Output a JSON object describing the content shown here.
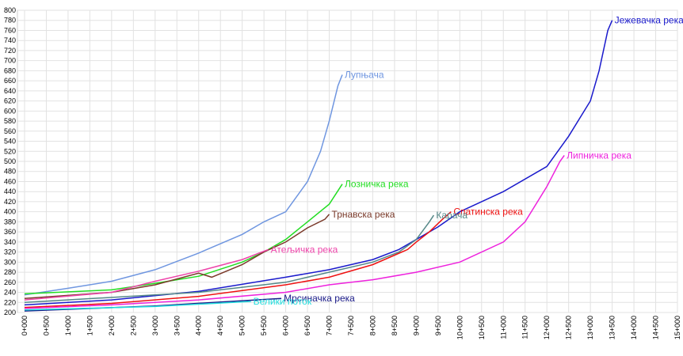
{
  "chart_data": {
    "type": "line",
    "xlim": [
      0,
      15000
    ],
    "xticks": [
      {
        "value": 0,
        "label": "0+000"
      },
      {
        "value": 500,
        "label": "0+500"
      },
      {
        "value": 1000,
        "label": "1+000"
      },
      {
        "value": 1500,
        "label": "1+500"
      },
      {
        "value": 2000,
        "label": "2+000"
      },
      {
        "value": 2500,
        "label": "2+500"
      },
      {
        "value": 3000,
        "label": "3+000"
      },
      {
        "value": 3500,
        "label": "3+500"
      },
      {
        "value": 4000,
        "label": "4+000"
      },
      {
        "value": 4500,
        "label": "4+500"
      },
      {
        "value": 5000,
        "label": "5+000"
      },
      {
        "value": 5500,
        "label": "5+500"
      },
      {
        "value": 6000,
        "label": "6+000"
      },
      {
        "value": 6500,
        "label": "6+500"
      },
      {
        "value": 7000,
        "label": "7+000"
      },
      {
        "value": 7500,
        "label": "7+500"
      },
      {
        "value": 8000,
        "label": "8+000"
      },
      {
        "value": 8500,
        "label": "8+500"
      },
      {
        "value": 9000,
        "label": "9+000"
      },
      {
        "value": 9500,
        "label": "9+500"
      },
      {
        "value": 10000,
        "label": "10+000"
      },
      {
        "value": 10500,
        "label": "10+500"
      },
      {
        "value": 11000,
        "label": "11+000"
      },
      {
        "value": 11500,
        "label": "11+500"
      },
      {
        "value": 12000,
        "label": "12+000"
      },
      {
        "value": 12500,
        "label": "12+500"
      },
      {
        "value": 13000,
        "label": "13+000"
      },
      {
        "value": 13500,
        "label": "13+500"
      },
      {
        "value": 14000,
        "label": "14+000"
      },
      {
        "value": 14500,
        "label": "14+500"
      },
      {
        "value": 15000,
        "label": "15+000"
      }
    ],
    "ylim": [
      200,
      800
    ],
    "yticks": [
      200,
      220,
      240,
      260,
      280,
      300,
      320,
      340,
      360,
      380,
      400,
      420,
      440,
      460,
      480,
      500,
      520,
      540,
      560,
      580,
      600,
      620,
      640,
      660,
      680,
      700,
      720,
      740,
      760,
      780,
      800
    ],
    "grid": true,
    "series": [
      {
        "name": "Лупњача",
        "color": "#6f96e0",
        "x": [
          0,
          1000,
          2000,
          3000,
          4000,
          5000,
          5500,
          6000,
          6500,
          6800,
          7000,
          7200,
          7300
        ],
        "values": [
          235,
          248,
          262,
          285,
          318,
          355,
          380,
          400,
          460,
          520,
          580,
          650,
          672
        ]
      },
      {
        "name": "Лозничка река",
        "color": "#22dd22",
        "x": [
          0,
          2000,
          3000,
          4000,
          5000,
          5500,
          6000,
          6500,
          7000,
          7300
        ],
        "values": [
          237,
          245,
          258,
          272,
          300,
          320,
          345,
          380,
          415,
          455
        ]
      },
      {
        "name": "Трнавска река",
        "color": "#7a3a2a",
        "x": [
          0,
          2000,
          3000,
          4000,
          4300,
          5000,
          5500,
          6000,
          6500,
          6900,
          7000
        ],
        "values": [
          228,
          240,
          255,
          278,
          270,
          295,
          320,
          340,
          368,
          385,
          395
        ]
      },
      {
        "name": "Атељичка река",
        "color": "#ee44aa",
        "x": [
          0,
          2000,
          3000,
          4000,
          5000,
          5600
        ],
        "values": [
          225,
          240,
          262,
          282,
          305,
          325
        ]
      },
      {
        "name": "Јежевачка река",
        "color": "#1a1acc",
        "x": [
          0,
          2000,
          4000,
          6000,
          7000,
          8000,
          8600,
          9000,
          9500,
          10000,
          11000,
          12000,
          12500,
          13000,
          13200,
          13400,
          13500
        ],
        "values": [
          215,
          225,
          242,
          270,
          285,
          305,
          325,
          345,
          370,
          400,
          440,
          490,
          550,
          620,
          680,
          760,
          780
        ]
      },
      {
        "name": "Спатинска река",
        "color": "#ee1111",
        "x": [
          0,
          2000,
          4000,
          6000,
          7000,
          8000,
          8800,
          9000,
          9300,
          9600,
          9800
        ],
        "values": [
          210,
          218,
          232,
          255,
          270,
          295,
          325,
          340,
          360,
          385,
          400
        ]
      },
      {
        "name": "Карача",
        "color": "#558888",
        "x": [
          0,
          4000,
          6000,
          8000,
          8600,
          9000,
          9300,
          9400
        ],
        "values": [
          220,
          240,
          260,
          300,
          320,
          345,
          380,
          393
        ]
      },
      {
        "name": "Липничка река",
        "color": "#ee22dd",
        "x": [
          0,
          2000,
          4000,
          6000,
          7000,
          8000,
          9000,
          10000,
          11000,
          11500,
          12000,
          12300,
          12400
        ],
        "values": [
          208,
          215,
          225,
          240,
          255,
          265,
          280,
          300,
          340,
          380,
          450,
          500,
          512
        ]
      },
      {
        "name": "Мрсиначка река",
        "color": "#1a1a88",
        "x": [
          0,
          3000,
          5900
        ],
        "values": [
          203,
          213,
          228
        ]
      },
      {
        "name": "Велики поток",
        "color": "#22dddd",
        "x": [
          0,
          3000,
          5200
        ],
        "values": [
          205,
          212,
          222
        ]
      }
    ]
  }
}
